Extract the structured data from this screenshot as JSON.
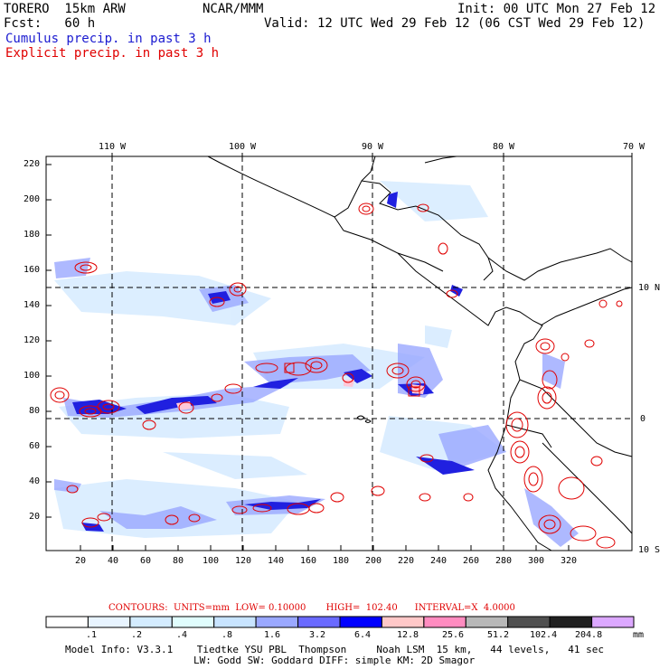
{
  "header": {
    "model": "TORERO  15km ARW",
    "org": "NCAR/MMM",
    "init": "Init: 00 UTC Mon 27 Feb 12",
    "fcst": "Fcst:   60 h",
    "valid": "Valid: 12 UTC Wed 29 Feb 12 (06 CST Wed 29 Feb 12)",
    "cumulus": "Cumulus precip. in past 3 h",
    "explicit": "Explicit precip. in past 3 h"
  },
  "colors": {
    "cumulus_text": "#1a1ad0",
    "explicit_text": "#e00000",
    "contour": "#e00000"
  },
  "axes": {
    "y_ticks": [
      "220",
      "200",
      "180",
      "160",
      "140",
      "120",
      "100",
      "80",
      "60",
      "40",
      "20"
    ],
    "x_ticks": [
      "20",
      "40",
      "60",
      "80",
      "100",
      "120",
      "140",
      "160",
      "180",
      "200",
      "220",
      "240",
      "260",
      "280",
      "300",
      "320"
    ],
    "lon_labels": [
      "110 W",
      "100 W",
      "90 W",
      "80 W",
      "70 W"
    ],
    "lat_labels": [
      "10 N",
      "0",
      "10 S"
    ]
  },
  "contours_line": "CONTOURS:  UNITS=mm  LOW= 0.10000       HIGH=  102.40      INTERVAL=X  4.0000",
  "colorbar": {
    "colors": [
      "#ffffff",
      "#e8f4ff",
      "#d4ecff",
      "#e0fdfd",
      "#c8e4ff",
      "#9aa8ff",
      "#6a6aff",
      "#0000ff",
      "#ffc8c8",
      "#ff8cc0",
      "#b8b8b8",
      "#505050",
      "#202020",
      "#dca8ff"
    ],
    "labels": [
      ".1",
      ".2",
      ".4",
      ".8",
      "1.6",
      "3.2",
      "6.4",
      "12.8",
      "25.6",
      "51.2",
      "102.4",
      "204.8"
    ],
    "unit": "mm"
  },
  "model_info_1": "Model Info: V3.3.1    Tiedtke YSU PBL  Thompson     Noah LSM  15 km,   44 levels,   41 sec",
  "model_info_2": "LW: Godd SW: Goddard DIFF: simple KM: 2D Smagor"
}
